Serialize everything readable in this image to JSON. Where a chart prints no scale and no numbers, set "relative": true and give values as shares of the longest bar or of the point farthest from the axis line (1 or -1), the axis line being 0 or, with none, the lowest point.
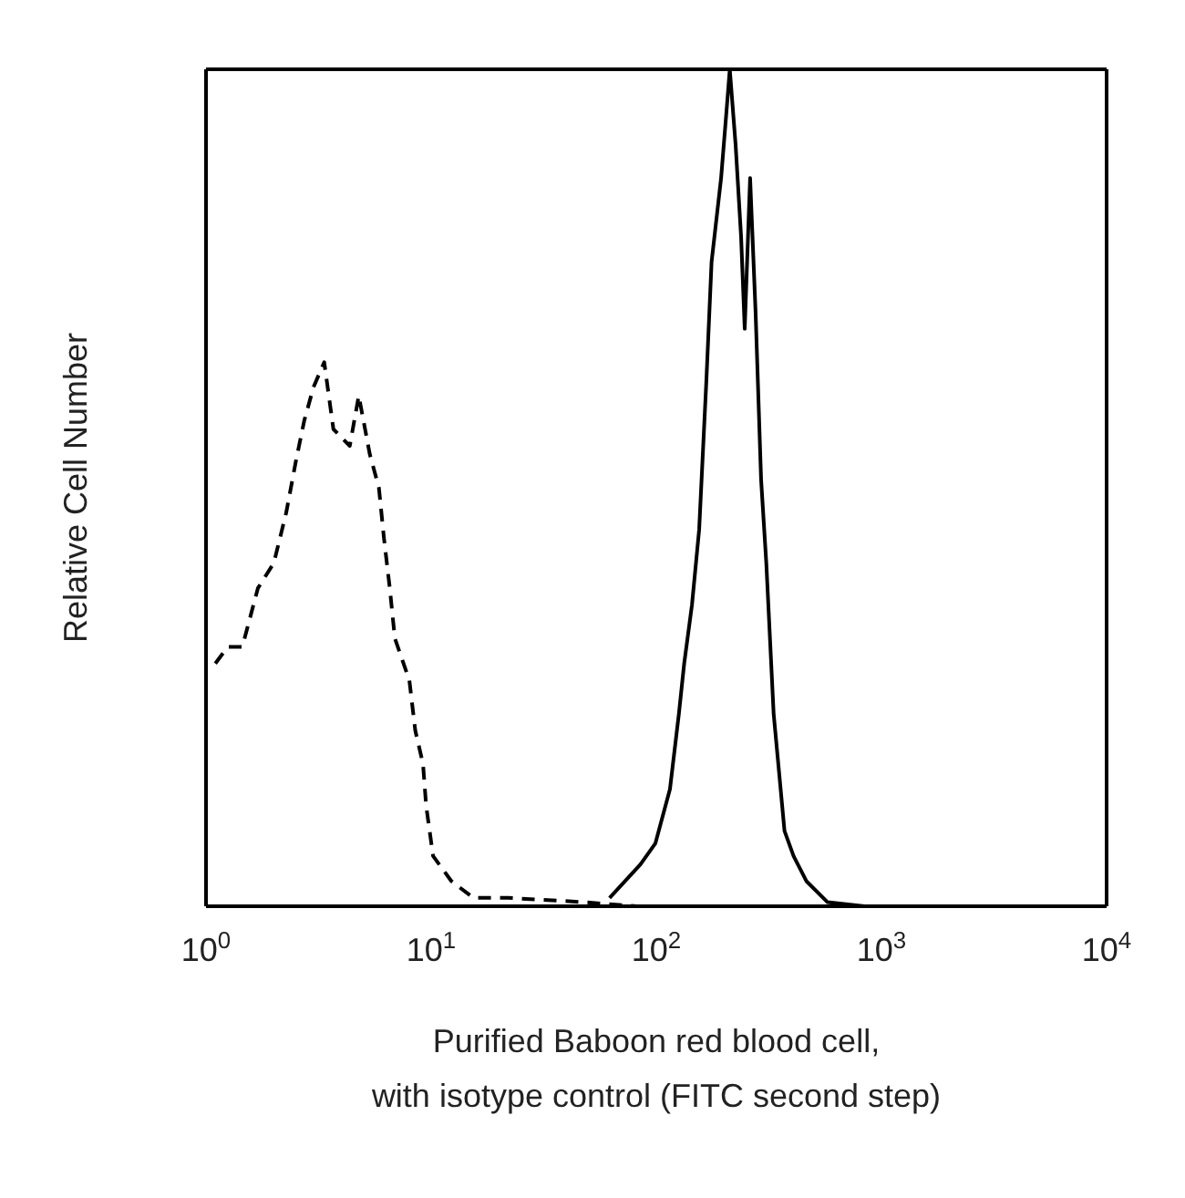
{
  "chart_data": {
    "type": "line",
    "xlabel": "Purified Baboon red blood cell,\nwith isotype control (FITC second step)",
    "ylabel": "Relative Cell Number",
    "relative": true,
    "log": "x",
    "xlim": [
      1,
      10000
    ],
    "xticks": [
      {
        "value": 1,
        "label": "10$^{0}$"
      },
      {
        "value": 10,
        "label": "10$^{1}$"
      },
      {
        "value": 100,
        "label": "10$^{2}$"
      },
      {
        "value": 1000,
        "label": "10$^{3}$"
      },
      {
        "value": 10000,
        "label": "10$^{4}$"
      }
    ],
    "marker": "none",
    "series": [
      {
        "color": "#000000",
        "line_style": "dashed",
        "x": [
          1.1,
          1.25,
          1.45,
          1.7,
          2.0,
          2.27,
          2.5,
          2.73,
          3.0,
          3.35,
          3.68,
          4.35,
          4.77,
          5.34,
          5.86,
          6.17,
          6.55,
          6.9,
          8.0,
          8.5,
          9.2,
          9.5,
          10.2,
          12.3,
          15.4,
          22,
          47,
          82
        ],
        "values": [
          0.29,
          0.31,
          0.31,
          0.38,
          0.41,
          0.47,
          0.53,
          0.58,
          0.62,
          0.65,
          0.57,
          0.55,
          0.61,
          0.54,
          0.5,
          0.44,
          0.38,
          0.32,
          0.27,
          0.21,
          0.17,
          0.12,
          0.06,
          0.03,
          0.01,
          0.01,
          0.005,
          0
        ]
      },
      {
        "color": "#000000",
        "line_style": "solid",
        "x": [
          62,
          85,
          99,
          115,
          126,
          133,
          144,
          155,
          167,
          176,
          194,
          205,
          212,
          225,
          238,
          247,
          261,
          276,
          292,
          308,
          332,
          351,
          371,
          407,
          464,
          575,
          841
        ],
        "values": [
          0.01,
          0.05,
          0.075,
          0.14,
          0.23,
          0.29,
          0.36,
          0.45,
          0.63,
          0.77,
          0.87,
          0.95,
          1,
          0.91,
          0.8,
          0.69,
          0.87,
          0.71,
          0.51,
          0.41,
          0.23,
          0.16,
          0.09,
          0.06,
          0.03,
          0.005,
          0
        ]
      }
    ]
  }
}
